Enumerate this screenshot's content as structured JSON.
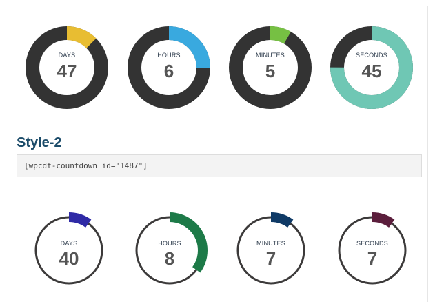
{
  "section": {
    "title": "Style-2",
    "shortcode": "[wpcdt-countdown id=\"1487\"]"
  },
  "style1": {
    "ring_color": "#333333",
    "units": [
      {
        "label": "DAYS",
        "value": "47",
        "accent": "#e8bd32",
        "progress": 0.125
      },
      {
        "label": "HOURS",
        "value": "6",
        "accent": "#39a9df",
        "progress": 0.25
      },
      {
        "label": "MINUTES",
        "value": "5",
        "accent": "#76c043",
        "progress": 0.083
      },
      {
        "label": "SECONDS",
        "value": "45",
        "accent": "#6fc7b4",
        "progress": 0.75
      }
    ]
  },
  "style2": {
    "ring_color": "#3c3a3a",
    "units": [
      {
        "label": "DAYS",
        "value": "40",
        "accent": "#2f2aa6",
        "progress": 0.1
      },
      {
        "label": "HOURS",
        "value": "8",
        "accent": "#1d7a48",
        "progress": 0.35
      },
      {
        "label": "MINUTES",
        "value": "7",
        "accent": "#0f3a66",
        "progress": 0.1
      },
      {
        "label": "SECONDS",
        "value": "7",
        "accent": "#5b1e3c",
        "progress": 0.1
      }
    ]
  }
}
